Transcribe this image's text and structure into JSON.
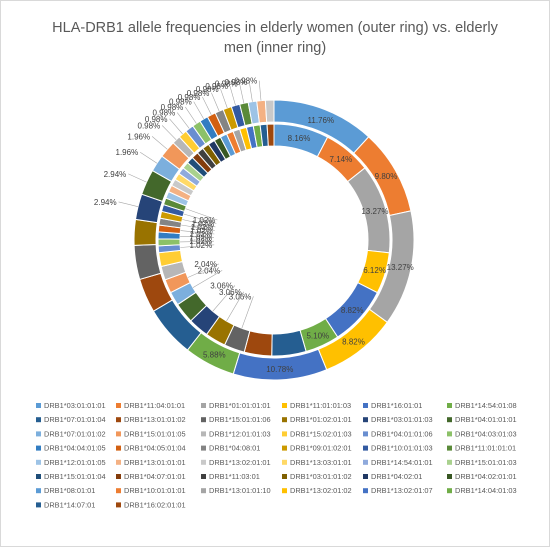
{
  "chart_data": {
    "type": "doughnut",
    "title": "HLA-DRB1 allele frequencies in elderly women (outer ring) vs. elderly men (inner ring)",
    "title_lines": [
      "HLA-DRB1 allele frequencies in elderly women (outer ring) vs. elderly",
      "men (inner ring)"
    ],
    "unit": "%",
    "legend_position": "bottom",
    "categories": [
      "DRB1*03:01:01:01",
      "DRB1*11:04:01:01",
      "DRB1*01:01:01:01",
      "DRB1*11:01:01:03",
      "DRB1*16:01:01",
      "DRB1*14:54:01:08",
      "DRB1*07:01:01:04",
      "DRB1*13:01:01:02",
      "DRB1*15:01:01:06",
      "DRB1*01:02:01:01",
      "DRB1*03:01:01:03",
      "DRB1*04:01:01:01",
      "DRB1*07:01:01:02",
      "DRB1*15:01:01:05",
      "DRB1*12:01:01:03",
      "DRB1*15:02:01:03",
      "DRB1*04:01:01:06",
      "DRB1*04:03:01:03",
      "DRB1*04:04:01:05",
      "DRB1*04:05:01:04",
      "DRB1*04:08:01",
      "DRB1*09:01:02:01",
      "DRB1*10:01:01:03",
      "DRB1*11:01:01:01",
      "DRB1*12:01:01:05",
      "DRB1*13:01:01:01",
      "DRB1*13:02:01:01",
      "DRB1*13:03:01:01",
      "DRB1*14:54:01:01",
      "DRB1*15:01:01:03",
      "DRB1*15:01:01:04",
      "DRB1*04:07:01:01",
      "DRB1*11:03:01",
      "DRB1*03:01:01:02",
      "DRB1*04:02:01",
      "DRB1*04:02:01:01",
      "DRB1*08:01:01",
      "DRB1*10:01:01:01",
      "DRB1*13:01:01:10",
      "DRB1*13:02:01:02",
      "DRB1*13:02:01:07",
      "DRB1*14:04:01:03",
      "DRB1*14:07:01",
      "DRB1*16:02:01:01"
    ],
    "colors": [
      "#5B9BD5",
      "#ED7D31",
      "#A5A5A5",
      "#FFC000",
      "#4472C4",
      "#70AD47",
      "#255E91",
      "#9E480E",
      "#636363",
      "#997300",
      "#264478",
      "#43682B",
      "#7CAFDD",
      "#F1975A",
      "#B7B7B7",
      "#FFCD33",
      "#698ED0",
      "#8CC168",
      "#327DC2",
      "#D26012",
      "#848484",
      "#CC9A00",
      "#335AA1",
      "#5A8A39",
      "#9DC3E6",
      "#F4B183",
      "#C9C9C9",
      "#FFD966",
      "#8FAADC",
      "#A9D18E",
      "#1F4E79",
      "#843C0C",
      "#404040",
      "#7F6000",
      "#203864",
      "#385723",
      "#5B9BD5",
      "#ED7D31",
      "#A5A5A5",
      "#FFC000",
      "#4472C4",
      "#70AD47",
      "#255E91",
      "#9E480E"
    ],
    "series": [
      {
        "ring": "outer",
        "values": [
          11.76,
          9.8,
          13.27,
          8.82,
          10.78,
          5.88,
          5.88,
          3.92,
          3.92,
          2.94,
          2.94,
          2.94,
          1.96,
          1.96,
          0.98,
          0.98,
          0.98,
          0.98,
          0.98,
          0.98,
          0.98,
          0.98,
          0.98,
          0.98,
          0.98,
          0.98,
          0.98,
          0,
          0,
          0,
          0,
          0,
          0,
          0,
          0,
          0,
          0,
          0,
          0,
          0,
          0,
          0,
          0,
          0
        ],
        "labels": [
          "11.76%",
          "9.80%",
          "13.27%",
          "8.82%",
          "10.78%",
          "5.88%",
          "",
          "",
          "",
          "",
          "2.94%",
          "2.94%",
          "1.96%",
          "1.96%",
          "0.98%",
          "0.98%",
          "0.98%",
          "0.98%",
          "0.98%",
          "0.98%",
          "0.98%",
          "0.98%",
          "0.98%",
          "0.98%",
          "0.98%",
          "0.98%",
          "",
          "",
          "",
          "",
          "",
          "",
          "",
          "",
          "",
          "",
          "",
          "",
          "",
          "",
          "",
          "",
          "",
          ""
        ]
      },
      {
        "ring": "inner",
        "values": [
          8.16,
          7.14,
          13.27,
          6.12,
          8.82,
          5.1,
          5.1,
          4.08,
          3.06,
          3.06,
          3.06,
          3.06,
          2.04,
          2.04,
          2.04,
          2.04,
          1.02,
          1.02,
          1.02,
          1.02,
          1.02,
          1.02,
          1.02,
          1.02,
          1.02,
          1.02,
          1.02,
          1.02,
          1.02,
          1.02,
          1.02,
          1.02,
          1.02,
          1.02,
          1.02,
          1.02,
          1.02,
          1.02,
          1.02,
          1.02,
          1.02,
          1.02,
          1.02,
          1.02
        ],
        "labels": [
          "8.16%",
          "7.14%",
          "13.27%",
          "6.12%",
          "8.82%",
          "5.10%",
          "",
          "",
          "3.06%",
          "3.06%",
          "3.06%",
          "",
          "2.04%",
          "2.04%",
          "",
          "",
          "1.02%",
          "1.02%",
          "1.02%",
          "1.02%",
          "1.02%",
          "1.02%",
          "1.02%",
          "1.02%",
          "",
          "",
          "",
          "",
          "",
          "",
          "",
          "",
          "",
          "",
          "",
          "",
          "",
          "",
          "",
          "",
          "",
          "",
          "",
          ""
        ]
      }
    ]
  }
}
